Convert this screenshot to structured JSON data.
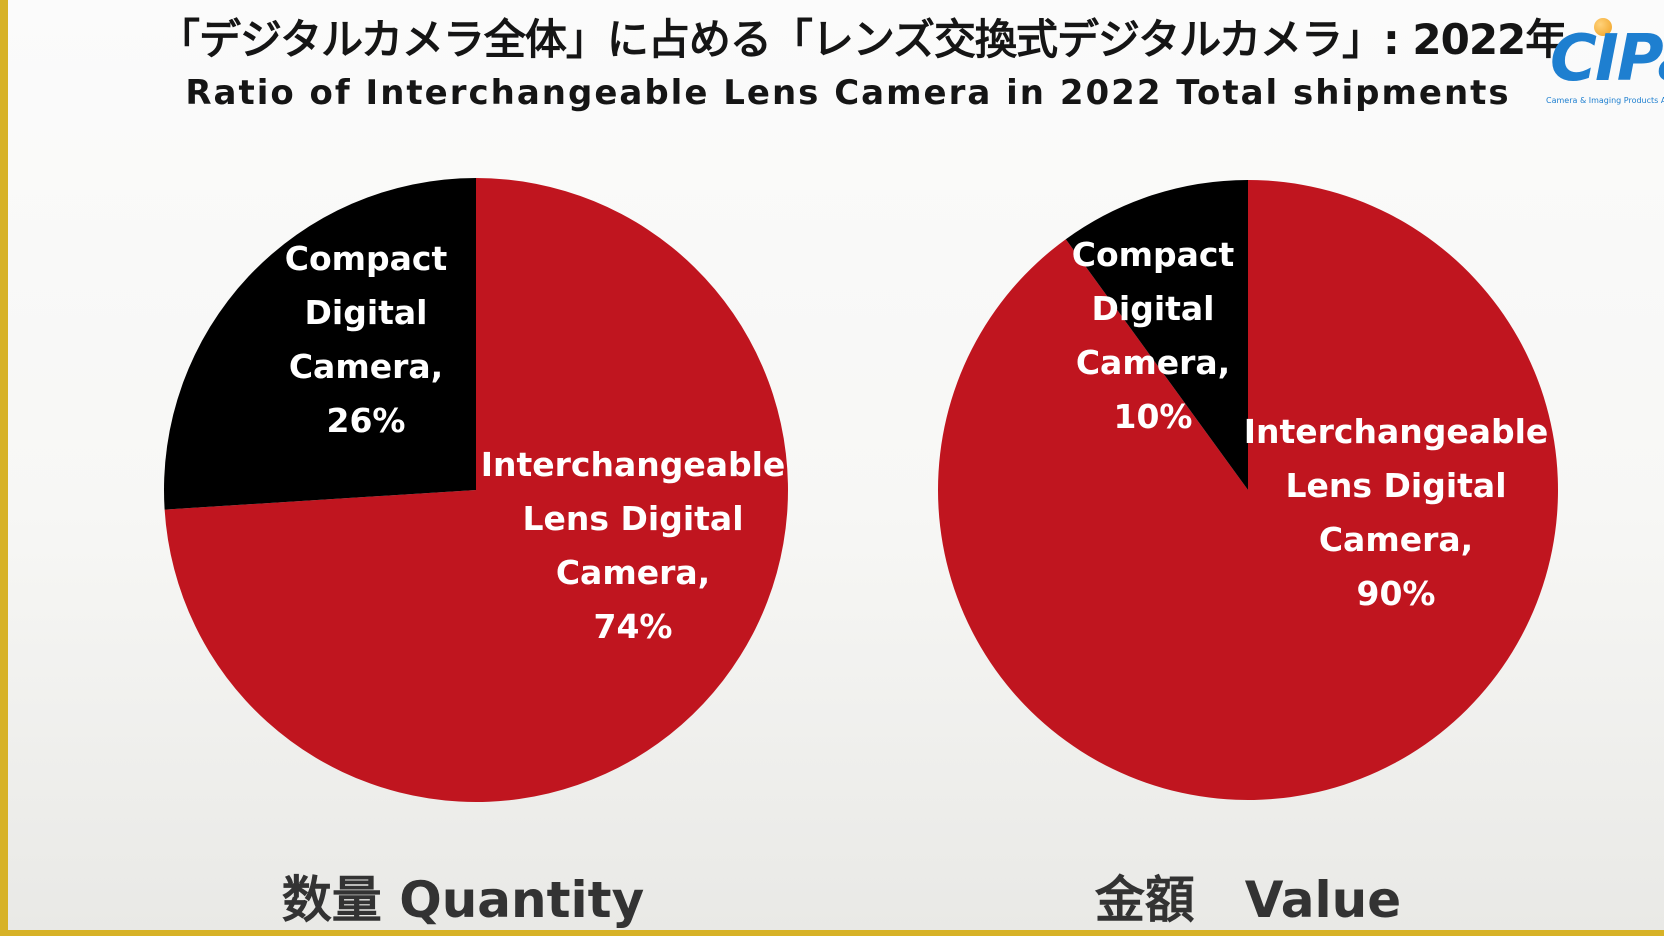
{
  "title_jp": "「デジタルカメラ全体」に占める「レンズ交換式デジタルカメラ」: 2022年",
  "title_en": "Ratio of Interchangeable Lens Camera in 2022 Total shipments",
  "logo": {
    "text": "CIPa",
    "subtext": "Camera & Imaging Products Association",
    "colors": {
      "text": "#1e7fd0",
      "dot": "#f0a020"
    }
  },
  "colors": {
    "interchangeable": "#c0151f",
    "compact": "#000000",
    "label": "#ffffff"
  },
  "chart_data": [
    {
      "type": "pie",
      "caption": "数量 Quantity",
      "slices": [
        {
          "name": "Interchangeable Lens Digital Camera",
          "value": 74,
          "label_lines": [
            "Interchangeable",
            "Lens Digital",
            "Camera,",
            "74%"
          ]
        },
        {
          "name": "Compact Digital Camera",
          "value": 26,
          "label_lines": [
            "Compact",
            "Digital",
            "Camera,",
            "26%"
          ]
        }
      ]
    },
    {
      "type": "pie",
      "caption": "金額　Value",
      "slices": [
        {
          "name": "Interchangeable Lens Digital Camera",
          "value": 90,
          "label_lines": [
            "Interchangeable",
            "Lens Digital",
            "Camera,",
            "90%"
          ]
        },
        {
          "name": "Compact Digital Camera",
          "value": 10,
          "label_lines": [
            "Compact",
            "Digital",
            "Camera,",
            "10%"
          ]
        }
      ]
    }
  ]
}
